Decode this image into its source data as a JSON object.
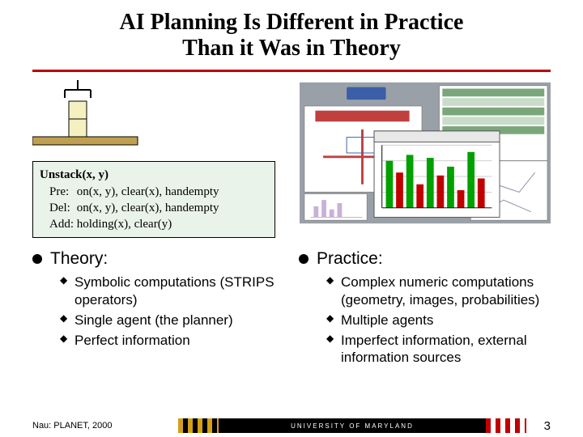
{
  "title_line1": "AI Planning Is Different in Practice",
  "title_line2": "Than it Was in Theory",
  "strips": {
    "op": "Unstack(x, y)",
    "rows": [
      {
        "label": "Pre:",
        "text": "on(x, y), clear(x), handempty"
      },
      {
        "label": "Del:",
        "text": "on(x, y), clear(x), handempty"
      },
      {
        "label": "Add:",
        "text": "holding(x), clear(y)"
      }
    ],
    "box_bg": "#eaf3ea"
  },
  "blocks_diagram": {
    "table_color": "#c0a050",
    "block_fill": "#f5f0c0",
    "block_stroke": "#000"
  },
  "practice_collage": {
    "bg": "#9aa0a8",
    "panel_bg": "#ffffff",
    "header_green": "#7aa77a",
    "badge_bg": "#3a5fa8",
    "banner_bg": "#c04040",
    "bars": [
      80,
      60,
      90,
      40,
      85,
      55,
      70,
      30,
      95,
      50
    ],
    "bar_colors": [
      "#00a000",
      "#c00000",
      "#00a000",
      "#c00000",
      "#00a000",
      "#c00000",
      "#00a000",
      "#c00000",
      "#00a000",
      "#c00000"
    ],
    "grid_color": "#c8c8c8"
  },
  "left": {
    "heading": "Theory:",
    "items": [
      "Symbolic computations (STRIPS operators)",
      "Single agent (the planner)",
      "Perfect information"
    ]
  },
  "right": {
    "heading": "Practice:",
    "items": [
      "Complex numeric computations (geometry, images, probabilities)",
      "Multiple agents",
      "Imperfect information, external information sources"
    ]
  },
  "footer": {
    "credit": "Nau: PLANET, 2000",
    "banner_text": "UNIVERSITY OF MARYLAND",
    "page": "3"
  },
  "colors": {
    "title_underline": "#c00000"
  }
}
